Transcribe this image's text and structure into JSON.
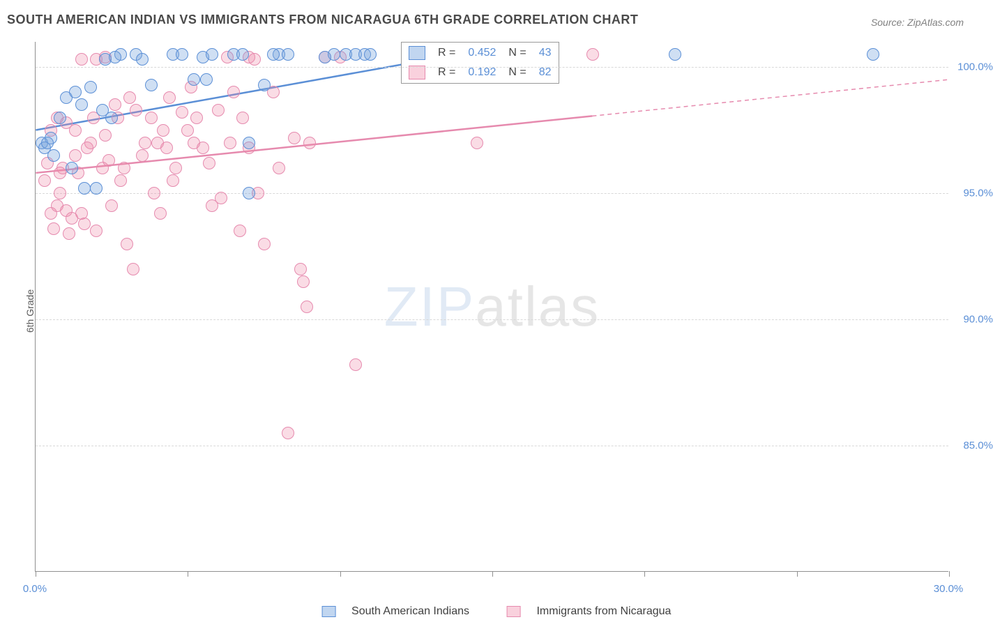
{
  "title": "SOUTH AMERICAN INDIAN VS IMMIGRANTS FROM NICARAGUA 6TH GRADE CORRELATION CHART",
  "source": "Source: ZipAtlas.com",
  "ylabel": "6th Grade",
  "watermark": {
    "zip": "ZIP",
    "atlas": "atlas"
  },
  "chart": {
    "type": "scatter",
    "xlim": [
      0,
      30
    ],
    "ylim": [
      80,
      101
    ],
    "xtick_positions": [
      0,
      5,
      10,
      15,
      20,
      25,
      30
    ],
    "xtick_labels": [
      "0.0%",
      "",
      "",
      "",
      "",
      "",
      "30.0%"
    ],
    "ytick_positions": [
      85,
      90,
      95,
      100
    ],
    "ytick_labels": [
      "85.0%",
      "90.0%",
      "95.0%",
      "100.0%"
    ],
    "grid_color": "#d8d8d8",
    "background_color": "#ffffff",
    "marker_radius": 9,
    "series": [
      {
        "name": "South American Indians",
        "color_fill": "rgba(118,164,222,0.35)",
        "color_stroke": "#5b8fd6",
        "R": 0.452,
        "N": 43,
        "trend": {
          "x1": 0,
          "y1": 97.5,
          "x2": 12.5,
          "y2": 100.2,
          "dash_after_ymax": false,
          "stroke_width": 2.5
        },
        "points": [
          [
            0.2,
            97.0
          ],
          [
            0.3,
            96.8
          ],
          [
            0.5,
            97.2
          ],
          [
            0.4,
            97.0
          ],
          [
            0.6,
            96.5
          ],
          [
            1.0,
            98.8
          ],
          [
            1.3,
            99.0
          ],
          [
            1.8,
            99.2
          ],
          [
            1.5,
            98.5
          ],
          [
            2.8,
            100.5
          ],
          [
            2.2,
            98.3
          ],
          [
            2.5,
            98.0
          ],
          [
            2.0,
            95.2
          ],
          [
            2.3,
            100.3
          ],
          [
            2.6,
            100.4
          ],
          [
            3.3,
            100.5
          ],
          [
            3.8,
            99.3
          ],
          [
            3.5,
            100.3
          ],
          [
            4.5,
            100.5
          ],
          [
            4.8,
            100.5
          ],
          [
            5.2,
            99.5
          ],
          [
            5.5,
            100.4
          ],
          [
            5.8,
            100.5
          ],
          [
            5.6,
            99.5
          ],
          [
            6.5,
            100.5
          ],
          [
            6.8,
            100.5
          ],
          [
            7.0,
            97.0
          ],
          [
            7.0,
            95.0
          ],
          [
            7.5,
            99.3
          ],
          [
            8.0,
            100.5
          ],
          [
            8.3,
            100.5
          ],
          [
            9.5,
            100.4
          ],
          [
            9.8,
            100.5
          ],
          [
            10.2,
            100.5
          ],
          [
            10.5,
            100.5
          ],
          [
            10.8,
            100.5
          ],
          [
            11.0,
            100.5
          ],
          [
            7.8,
            100.5
          ],
          [
            21.0,
            100.5
          ],
          [
            27.5,
            100.5
          ],
          [
            1.6,
            95.2
          ],
          [
            0.8,
            98.0
          ],
          [
            1.2,
            96.0
          ]
        ]
      },
      {
        "name": "Immigrants from Nicaragua",
        "color_fill": "rgba(240,140,170,0.30)",
        "color_stroke": "#e68aae",
        "R": 0.192,
        "N": 82,
        "trend": {
          "x1": 0,
          "y1": 95.8,
          "x2": 30,
          "y2": 99.5,
          "dash_after_x": 18.3,
          "stroke_width": 2.5
        },
        "points": [
          [
            0.3,
            95.5
          ],
          [
            0.5,
            94.2
          ],
          [
            0.7,
            94.5
          ],
          [
            0.4,
            96.2
          ],
          [
            0.8,
            95.0
          ],
          [
            1.0,
            94.3
          ],
          [
            1.2,
            94.0
          ],
          [
            1.5,
            94.2
          ],
          [
            1.3,
            96.5
          ],
          [
            1.6,
            93.8
          ],
          [
            1.8,
            97.0
          ],
          [
            1.4,
            95.8
          ],
          [
            2.0,
            93.5
          ],
          [
            2.2,
            96.0
          ],
          [
            2.5,
            94.5
          ],
          [
            2.3,
            97.3
          ],
          [
            2.7,
            98.0
          ],
          [
            2.8,
            95.5
          ],
          [
            3.0,
            93.0
          ],
          [
            3.2,
            92.0
          ],
          [
            3.5,
            96.5
          ],
          [
            3.3,
            98.3
          ],
          [
            3.8,
            98.0
          ],
          [
            4.0,
            97.0
          ],
          [
            4.2,
            97.5
          ],
          [
            4.5,
            95.5
          ],
          [
            4.3,
            96.8
          ],
          [
            4.8,
            98.2
          ],
          [
            5.0,
            97.5
          ],
          [
            5.2,
            97.0
          ],
          [
            5.5,
            96.8
          ],
          [
            5.8,
            94.5
          ],
          [
            6.0,
            98.3
          ],
          [
            6.3,
            100.4
          ],
          [
            6.5,
            99.0
          ],
          [
            6.8,
            98.0
          ],
          [
            7.0,
            96.8
          ],
          [
            7.3,
            95.0
          ],
          [
            7.5,
            93.0
          ],
          [
            7.0,
            100.4
          ],
          [
            7.2,
            100.3
          ],
          [
            7.8,
            99.0
          ],
          [
            8.0,
            96.0
          ],
          [
            8.3,
            85.5
          ],
          [
            8.5,
            97.2
          ],
          [
            8.8,
            91.5
          ],
          [
            9.0,
            97.0
          ],
          [
            8.7,
            92.0
          ],
          [
            8.9,
            90.5
          ],
          [
            9.5,
            100.4
          ],
          [
            10.0,
            100.4
          ],
          [
            10.5,
            88.2
          ],
          [
            1.5,
            100.3
          ],
          [
            2.0,
            100.3
          ],
          [
            2.3,
            100.4
          ],
          [
            14.5,
            97.0
          ],
          [
            18.3,
            100.5
          ],
          [
            0.6,
            93.6
          ],
          [
            1.1,
            93.4
          ],
          [
            1.7,
            96.8
          ],
          [
            2.4,
            96.3
          ],
          [
            2.9,
            96.0
          ],
          [
            0.9,
            96.0
          ],
          [
            1.3,
            97.5
          ],
          [
            3.6,
            97.0
          ],
          [
            3.9,
            95.0
          ],
          [
            4.1,
            94.2
          ],
          [
            4.6,
            96.0
          ],
          [
            5.3,
            98.0
          ],
          [
            5.7,
            96.2
          ],
          [
            6.1,
            94.8
          ],
          [
            6.4,
            97.0
          ],
          [
            6.7,
            93.5
          ],
          [
            2.6,
            98.5
          ],
          [
            3.1,
            98.8
          ],
          [
            4.4,
            98.8
          ],
          [
            5.1,
            99.2
          ],
          [
            0.7,
            98.0
          ],
          [
            1.0,
            97.8
          ],
          [
            1.9,
            98.0
          ],
          [
            0.5,
            97.5
          ],
          [
            0.8,
            95.8
          ]
        ]
      }
    ]
  },
  "legend_rn": {
    "R_label": "R =",
    "N_label": "N =",
    "rows": [
      {
        "swatch": "blue",
        "R": "0.452",
        "N": "43"
      },
      {
        "swatch": "pink",
        "R": "0.192",
        "N": "82"
      }
    ]
  },
  "legend_bottom": [
    {
      "swatch": "blue",
      "label": "South American Indians"
    },
    {
      "swatch": "pink",
      "label": "Immigrants from Nicaragua"
    }
  ]
}
